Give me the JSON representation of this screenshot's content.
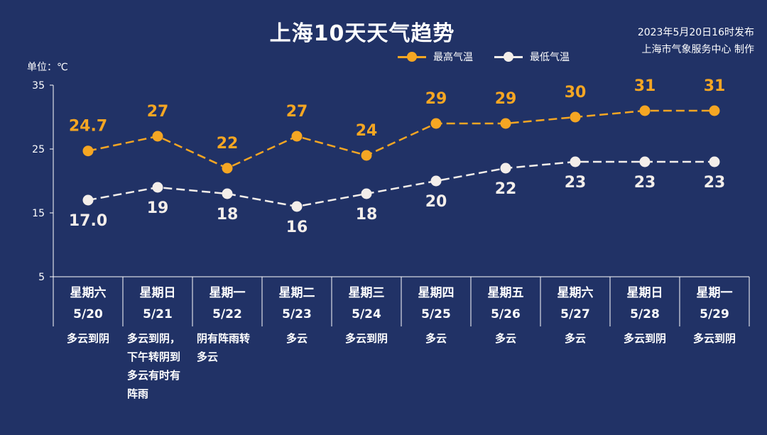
{
  "title": "上海10天天气趋势",
  "release": {
    "line1": "2023年5月20日16时发布",
    "line2": "上海市气象服务中心 制作"
  },
  "unit_label": "单位：℃",
  "colors": {
    "background": "#213266",
    "high": "#F5A623",
    "low": "#F3EEEA",
    "axis": "#FFFFFF"
  },
  "days": [
    {
      "weekday": "星期六",
      "date": "5/20",
      "weather": "多云到阴"
    },
    {
      "weekday": "星期日",
      "date": "5/21",
      "weather": "多云到阴，下午转阴到多云有时有阵雨"
    },
    {
      "weekday": "星期一",
      "date": "5/22",
      "weather": "阴有阵雨转多云"
    },
    {
      "weekday": "星期二",
      "date": "5/23",
      "weather": "多云"
    },
    {
      "weekday": "星期三",
      "date": "5/24",
      "weather": "多云到阴"
    },
    {
      "weekday": "星期四",
      "date": "5/25",
      "weather": "多云"
    },
    {
      "weekday": "星期五",
      "date": "5/26",
      "weather": "多云"
    },
    {
      "weekday": "星期六",
      "date": "5/27",
      "weather": "多云"
    },
    {
      "weekday": "星期日",
      "date": "5/28",
      "weather": "多云到阴"
    },
    {
      "weekday": "星期一",
      "date": "5/29",
      "weather": "多云到阴"
    }
  ],
  "chart_data": {
    "type": "line",
    "title": "上海10天天气趋势",
    "ylabel": "单位：℃",
    "categories": [
      "5/20",
      "5/21",
      "5/22",
      "5/23",
      "5/24",
      "5/25",
      "5/26",
      "5/27",
      "5/28",
      "5/29"
    ],
    "series": [
      {
        "name": "最高气温",
        "values": [
          24.7,
          27,
          22,
          27,
          24,
          29,
          29,
          30,
          31,
          31
        ],
        "labels": [
          "24.7",
          "27",
          "22",
          "27",
          "24",
          "29",
          "29",
          "30",
          "31",
          "31"
        ]
      },
      {
        "name": "最低气温",
        "values": [
          17.0,
          19,
          18,
          16,
          18,
          20,
          22,
          23,
          23,
          23
        ],
        "labels": [
          "17.0",
          "19",
          "18",
          "16",
          "18",
          "20",
          "22",
          "23",
          "23",
          "23"
        ]
      }
    ],
    "ylim": [
      5,
      35
    ],
    "yticks": [
      35,
      25,
      15,
      5
    ],
    "grid": false,
    "legend": "top"
  }
}
